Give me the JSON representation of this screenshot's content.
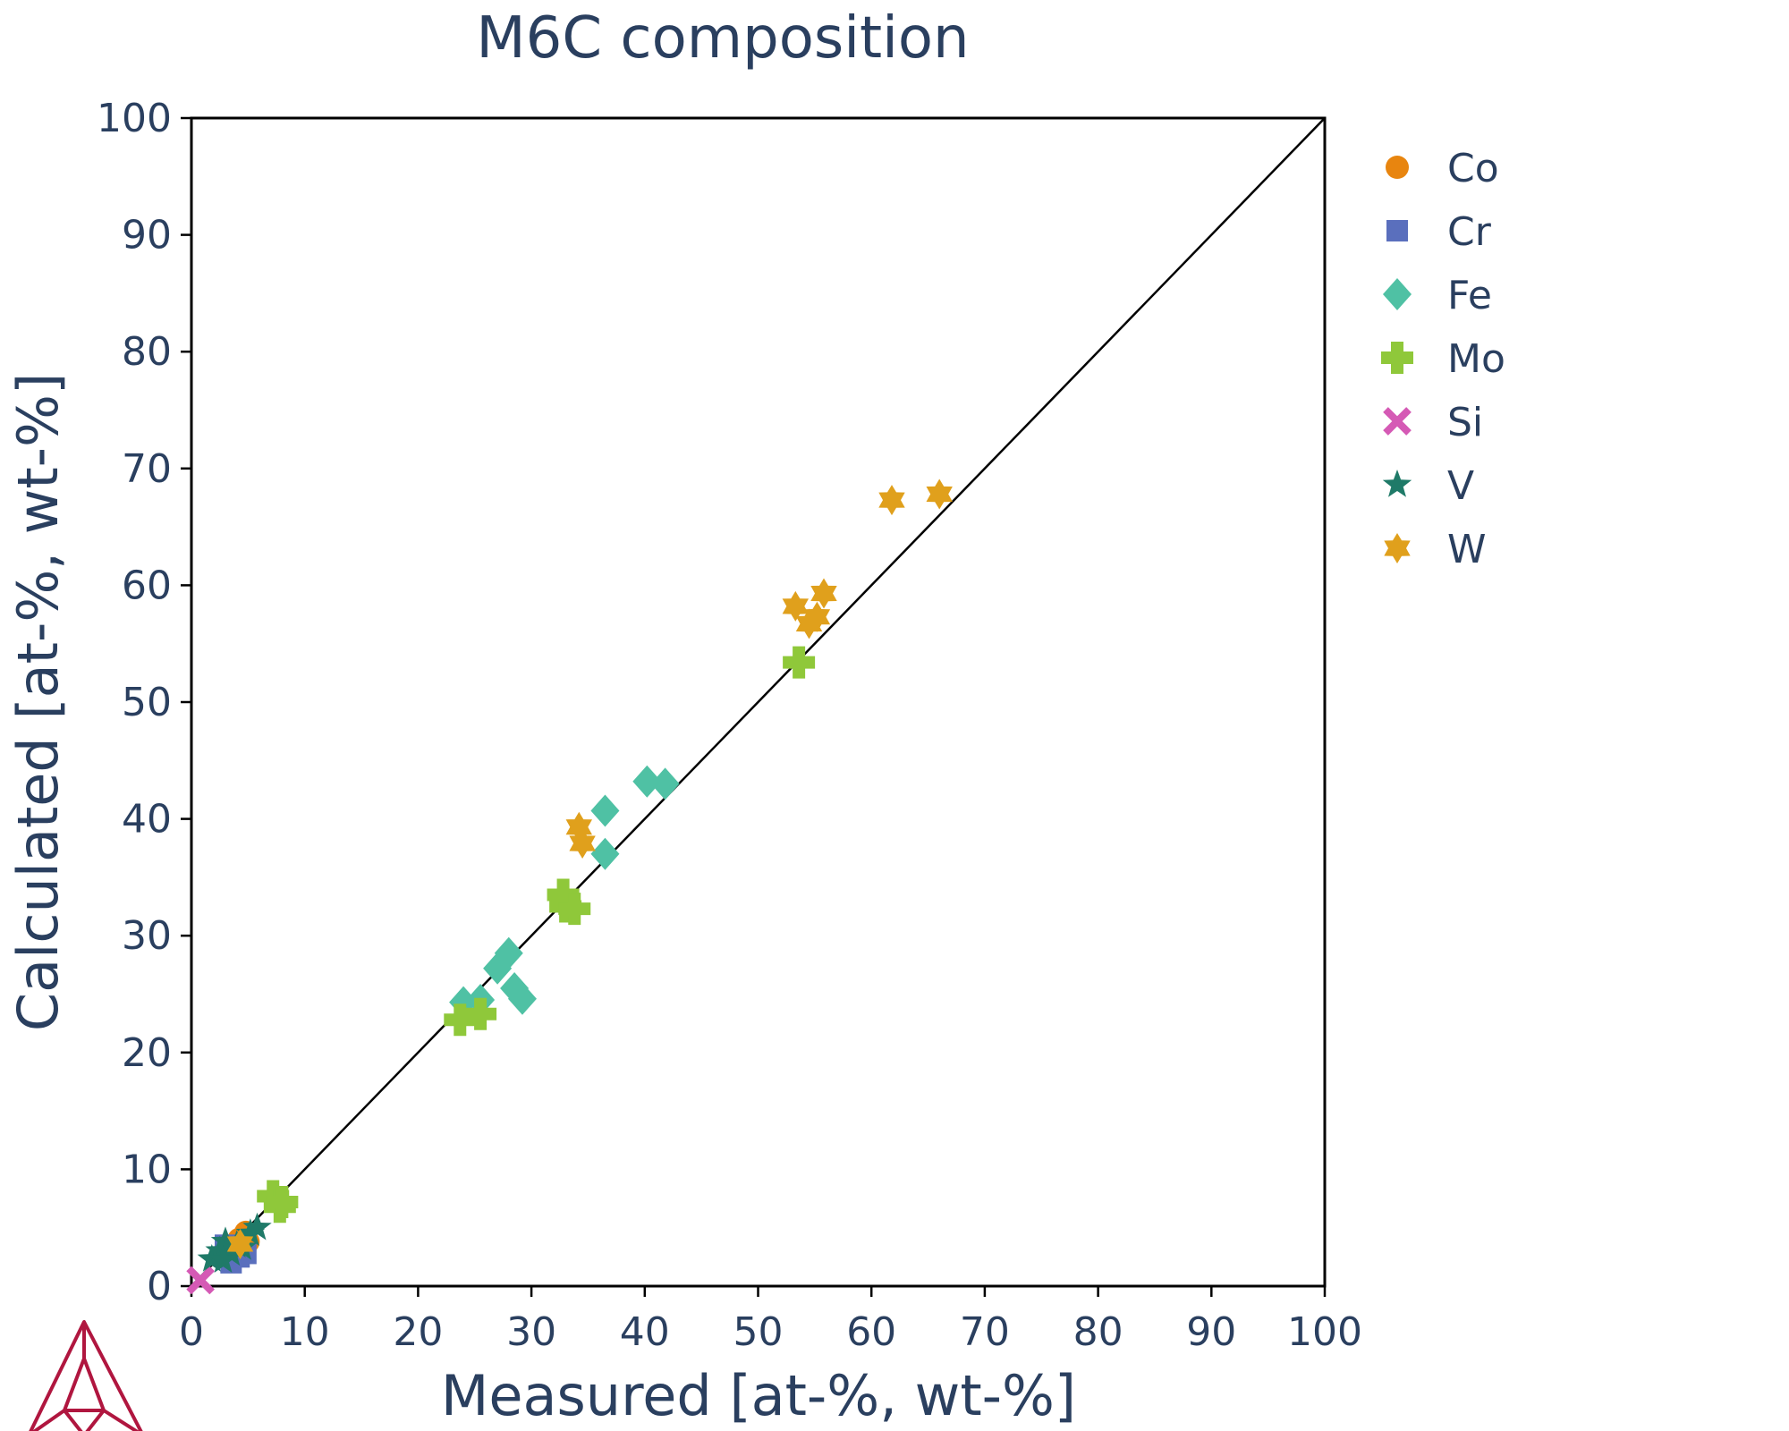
{
  "chart_data": {
    "type": "scatter",
    "title": "M6C composition",
    "xlabel": "Measured [at-%, wt-%]",
    "ylabel": "Calculated [at-%, wt-%]",
    "xlim": [
      0,
      100
    ],
    "ylim": [
      0,
      100
    ],
    "xticks": [
      "0",
      "10",
      "20",
      "30",
      "40",
      "50",
      "60",
      "70",
      "80",
      "90",
      "100"
    ],
    "yticks": [
      "0",
      "10",
      "20",
      "30",
      "40",
      "50",
      "60",
      "70",
      "80",
      "90",
      "100"
    ],
    "grid": false,
    "legend_position": "right",
    "reference_line": [
      [
        0,
        0
      ],
      [
        100,
        100
      ]
    ],
    "logo_icon": "thermo-calc-triangle-logo",
    "series": [
      {
        "name": "Co",
        "marker": "circle",
        "color": "#e8850f",
        "points": [
          [
            4.2,
            4.0
          ],
          [
            4.8,
            4.6
          ],
          [
            5.0,
            3.8
          ]
        ]
      },
      {
        "name": "Cr",
        "marker": "square",
        "color": "#5a6fbd",
        "points": [
          [
            3.5,
            2.0
          ],
          [
            4.2,
            2.5
          ],
          [
            4.8,
            2.8
          ],
          [
            3.0,
            3.5
          ],
          [
            4.0,
            3.2
          ]
        ]
      },
      {
        "name": "Fe",
        "marker": "diamond",
        "color": "#4fc1a4",
        "points": [
          [
            24.0,
            24.3
          ],
          [
            25.5,
            24.5
          ],
          [
            27.0,
            27.2
          ],
          [
            28.0,
            28.5
          ],
          [
            28.5,
            25.5
          ],
          [
            29.2,
            24.6
          ],
          [
            36.5,
            40.7
          ],
          [
            36.5,
            37.0
          ],
          [
            40.2,
            43.2
          ],
          [
            41.8,
            43.0
          ]
        ]
      },
      {
        "name": "Mo",
        "marker": "cross",
        "color": "#8fc83a",
        "points": [
          [
            23.7,
            22.8
          ],
          [
            25.5,
            23.3
          ],
          [
            32.8,
            33.5
          ],
          [
            33.0,
            32.5
          ],
          [
            33.8,
            32.3
          ],
          [
            7.2,
            7.7
          ],
          [
            7.8,
            6.8
          ],
          [
            8.0,
            7.2
          ],
          [
            53.6,
            53.4
          ]
        ]
      },
      {
        "name": "Si",
        "marker": "x",
        "color": "#d55ab5",
        "points": [
          [
            0.8,
            0.5
          ]
        ]
      },
      {
        "name": "V",
        "marker": "star",
        "color": "#1f7a68",
        "points": [
          [
            1.8,
            2.3
          ],
          [
            2.5,
            3.0
          ],
          [
            3.0,
            3.8
          ],
          [
            3.5,
            2.8
          ],
          [
            4.0,
            3.5
          ],
          [
            4.5,
            3.3
          ],
          [
            5.2,
            4.5
          ],
          [
            5.8,
            5.0
          ],
          [
            2.8,
            2.2
          ]
        ]
      },
      {
        "name": "W",
        "marker": "star6",
        "color": "#e0a01c",
        "points": [
          [
            34.2,
            39.3
          ],
          [
            34.5,
            37.9
          ],
          [
            53.3,
            58.2
          ],
          [
            54.5,
            56.7
          ],
          [
            55.2,
            57.3
          ],
          [
            55.8,
            59.3
          ],
          [
            61.8,
            67.3
          ],
          [
            66.0,
            67.8
          ],
          [
            4.3,
            3.6
          ]
        ]
      }
    ]
  }
}
